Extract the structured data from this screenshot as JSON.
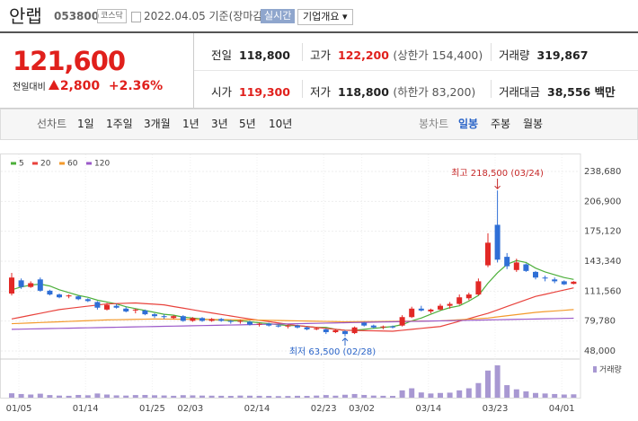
{
  "header": {
    "name": "안랩",
    "code": "053800",
    "market": "코스닥",
    "date": "2022.04.05 기준(장마감)",
    "realtime": "실시간",
    "company": "기업개요 ▾"
  },
  "quote": {
    "price": "121,600",
    "change_label": "전일대비",
    "change": "2,800",
    "change_pct": "+2.36%",
    "stats": [
      {
        "label": "전일",
        "value": "118,800",
        "red": false
      },
      {
        "label": "고가",
        "value": "122,200",
        "note": "(상한가 154,400)",
        "red": true
      },
      {
        "label": "거래량",
        "value": "319,867",
        "red": false
      },
      {
        "label": "시가",
        "value": "119,300",
        "red": true
      },
      {
        "label": "저가",
        "value": "118,800",
        "note": "(하한가 83,200)",
        "red": false
      },
      {
        "label": "거래대금",
        "value": "38,556 백만",
        "red": false
      }
    ]
  },
  "tabs": {
    "line": [
      "선차트",
      "1일",
      "1주일",
      "3개월",
      "1년",
      "3년",
      "5년",
      "10년"
    ],
    "candle": [
      "봉차트",
      "일봉",
      "주봉",
      "월봉"
    ],
    "candle_selected": 1
  },
  "chart_data": {
    "type": "candlestick",
    "categories": [
      "01/05",
      null,
      null,
      null,
      null,
      null,
      null,
      "01/14",
      null,
      null,
      null,
      null,
      null,
      null,
      "01/25",
      null,
      null,
      null,
      "02/03",
      null,
      null,
      null,
      null,
      null,
      null,
      "02/14",
      null,
      null,
      null,
      null,
      null,
      null,
      "02/23",
      null,
      null,
      null,
      "03/02",
      null,
      null,
      null,
      null,
      null,
      null,
      "03/14",
      null,
      null,
      null,
      null,
      null,
      null,
      "03/23",
      null,
      null,
      null,
      null,
      null,
      null,
      "04/01",
      null,
      null
    ],
    "open": [
      109000,
      123000,
      116000,
      124000,
      112000,
      108000,
      106000,
      106000,
      103000,
      100000,
      92000,
      96000,
      93000,
      91000,
      91000,
      87000,
      85000,
      83000,
      85000,
      80000,
      83000,
      80000,
      82000,
      80000,
      79000,
      79000,
      76000,
      77000,
      75000,
      74000,
      75000,
      73000,
      71000,
      71000,
      68000,
      69000,
      67000,
      78000,
      75000,
      73000,
      74000,
      75000,
      84000,
      93000,
      90000,
      92000,
      96000,
      98000,
      104000,
      108000,
      139000,
      182000,
      148000,
      134000,
      140000,
      132000,
      126000,
      124000,
      122000,
      119300
    ],
    "high": [
      131000,
      125000,
      122000,
      126000,
      113000,
      109000,
      108000,
      107000,
      104000,
      101000,
      99000,
      98000,
      95000,
      93000,
      92000,
      88000,
      87000,
      86000,
      86000,
      84000,
      84000,
      83000,
      83000,
      81000,
      81000,
      80000,
      78000,
      78000,
      76000,
      76000,
      76000,
      74000,
      73000,
      72000,
      71000,
      70000,
      74000,
      79000,
      76000,
      75000,
      75000,
      86000,
      95000,
      96000,
      93000,
      98000,
      100000,
      108000,
      110000,
      125000,
      173000,
      218500,
      152000,
      146000,
      141000,
      133000,
      128000,
      126000,
      123000,
      122200
    ],
    "low": [
      107000,
      114000,
      115000,
      111000,
      107000,
      104000,
      104000,
      102000,
      100000,
      92000,
      91000,
      93000,
      89000,
      88000,
      86000,
      83000,
      82000,
      82000,
      79000,
      79000,
      79000,
      79000,
      79000,
      77000,
      77000,
      75000,
      74000,
      74000,
      73000,
      72000,
      72000,
      70000,
      70000,
      66000,
      67000,
      63500,
      66000,
      74000,
      72000,
      71000,
      72000,
      74000,
      83000,
      90000,
      88000,
      91000,
      93000,
      97000,
      102000,
      107000,
      137000,
      142000,
      135000,
      132000,
      132000,
      124000,
      122000,
      120000,
      118000,
      118800
    ],
    "close": [
      126000,
      116000,
      120000,
      112000,
      108000,
      105000,
      107000,
      103000,
      101000,
      94000,
      97000,
      94000,
      90000,
      92000,
      87000,
      85000,
      84000,
      85000,
      80000,
      83000,
      80000,
      82000,
      80000,
      79000,
      80000,
      76000,
      77000,
      75000,
      74000,
      75000,
      73000,
      71000,
      72000,
      68000,
      70000,
      66000,
      73000,
      75000,
      73000,
      74000,
      73000,
      84000,
      93000,
      91000,
      92000,
      96000,
      98000,
      105000,
      108000,
      122000,
      163000,
      145000,
      138000,
      142000,
      133000,
      126000,
      125000,
      122000,
      118800,
      121600
    ],
    "volume": [
      420000,
      350000,
      300000,
      380000,
      250000,
      200000,
      180000,
      260000,
      230000,
      400000,
      300000,
      220000,
      200000,
      250000,
      260000,
      230000,
      210000,
      180000,
      240000,
      220000,
      200000,
      190000,
      180000,
      170000,
      200000,
      190000,
      180000,
      170000,
      150000,
      160000,
      180000,
      170000,
      200000,
      250000,
      190000,
      280000,
      350000,
      260000,
      200000,
      180000,
      170000,
      700000,
      900000,
      500000,
      400000,
      450000,
      480000,
      700000,
      900000,
      1400000,
      2600000,
      3100000,
      1200000,
      800000,
      600000,
      450000,
      400000,
      350000,
      300000,
      319867
    ],
    "up_color": "#e22926",
    "down_color": "#2f6fd6",
    "volume_color": "#a898d2",
    "volume_label": "거래량",
    "series": [
      {
        "name": "5",
        "color": "#4caf3a",
        "values": [
          113000,
          116000,
          118000,
          119000,
          117000,
          113000,
          110000,
          107000,
          105000,
          102000,
          100000,
          98000,
          95000,
          93000,
          91000,
          89000,
          87000,
          86000,
          84000,
          83000,
          82000,
          81000,
          81000,
          80000,
          80000,
          79000,
          78000,
          77000,
          76000,
          75000,
          75000,
          74000,
          73000,
          73000,
          71000,
          70000,
          70000,
          71000,
          72000,
          73000,
          74000,
          76000,
          80000,
          83000,
          87000,
          91000,
          94000,
          96000,
          101000,
          107000,
          120000,
          131000,
          140000,
          144000,
          142000,
          136000,
          132000,
          129000,
          126000,
          124000
        ]
      },
      {
        "name": "20",
        "color": "#e8423c",
        "values": [
          82000,
          84000,
          86000,
          88000,
          90000,
          92000,
          93200,
          94400,
          95600,
          96800,
          98000,
          98300,
          98700,
          99000,
          98300,
          97700,
          97000,
          95200,
          93500,
          91800,
          90000,
          88400,
          86800,
          85200,
          83600,
          82000,
          80600,
          79200,
          77800,
          76400,
          75000,
          74000,
          73000,
          72000,
          71000,
          70000,
          69800,
          69600,
          69400,
          69200,
          69000,
          70000,
          71000,
          72000,
          73000,
          74000,
          76800,
          79600,
          82400,
          85200,
          88000,
          91600,
          95200,
          98800,
          102400,
          106000,
          108200,
          110500,
          112800,
          115000
        ]
      },
      {
        "name": "60",
        "color": "#f39a2c",
        "values": [
          77000,
          77400,
          77800,
          78200,
          78600,
          79000,
          79400,
          79800,
          80200,
          80600,
          81000,
          81200,
          81400,
          81600,
          81800,
          82000,
          81900,
          81800,
          81700,
          81600,
          81500,
          81400,
          81300,
          81200,
          81100,
          81000,
          80800,
          80600,
          80400,
          80200,
          80000,
          79800,
          79600,
          79400,
          79200,
          79000,
          79100,
          79200,
          79300,
          79400,
          79500,
          79600,
          79700,
          79800,
          79900,
          80000,
          80600,
          81200,
          81800,
          82400,
          83000,
          84200,
          85400,
          86600,
          87800,
          89000,
          89800,
          90500,
          91200,
          92000
        ]
      },
      {
        "name": "120",
        "color": "#9b59c9",
        "values": [
          71000,
          71200,
          71400,
          71600,
          71800,
          72000,
          72200,
          72400,
          72600,
          72800,
          73000,
          73200,
          73400,
          73600,
          73800,
          74000,
          74200,
          74400,
          74600,
          74800,
          75000,
          75200,
          75400,
          75600,
          75800,
          76000,
          76200,
          76400,
          76600,
          76800,
          77000,
          77200,
          77400,
          77600,
          77800,
          78000,
          78200,
          78400,
          78600,
          78800,
          79000,
          79200,
          79400,
          79600,
          79800,
          80000,
          80200,
          80400,
          80600,
          80800,
          81000,
          81200,
          81400,
          81600,
          81800,
          82000,
          82200,
          82400,
          82600,
          82800
        ]
      }
    ],
    "ylim": [
      48000,
      238680
    ],
    "yticks": [
      {
        "value": 48000,
        "label": "48,000"
      },
      {
        "value": 79780,
        "label": "79,780"
      },
      {
        "value": 111560,
        "label": "111,560"
      },
      {
        "value": 143340,
        "label": "143,340"
      },
      {
        "value": 175120,
        "label": "175,120"
      },
      {
        "value": 206900,
        "label": "206,900"
      },
      {
        "value": 238680,
        "label": "238,680"
      }
    ],
    "grid": true,
    "high_annotation": "최고 218,500 (03/24)",
    "low_annotation": "최저 63,500 (02/28)"
  }
}
